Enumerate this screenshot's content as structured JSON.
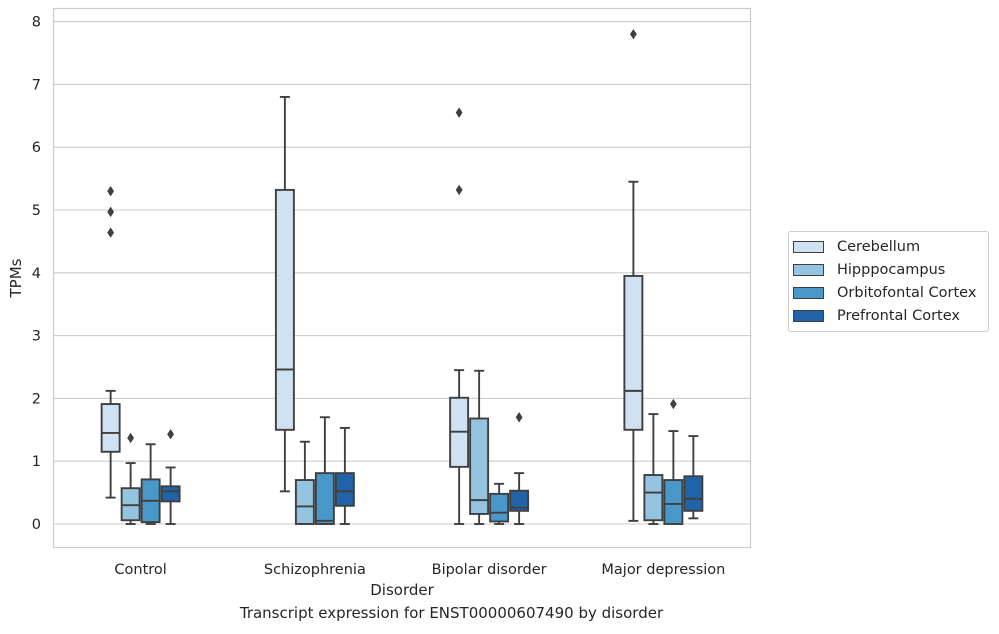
{
  "chart_data": {
    "type": "box",
    "title": "",
    "caption": "Transcript expression for ENST00000607490 by disorder",
    "xlabel": "Disorder",
    "ylabel": "TPMs",
    "ylim": [
      -0.38,
      8.2
    ],
    "yticks": [
      "0",
      "1",
      "2",
      "3",
      "4",
      "5",
      "6",
      "7",
      "8"
    ],
    "ytick_values": [
      0,
      1,
      2,
      3,
      4,
      5,
      6,
      7,
      8
    ],
    "grid": "horizontal",
    "legend_position": "right",
    "categories": [
      "Control",
      "Schizophrenia",
      "Bipolar disorder",
      "Major depression"
    ],
    "series": [
      {
        "name": "Cerebellum",
        "color": "#d0e1f2",
        "boxes": [
          {
            "whislo": 0.42,
            "q1": 1.15,
            "med": 1.45,
            "q3": 1.91,
            "whishi": 2.12,
            "fliers": [
              4.64,
              4.97,
              5.3
            ]
          },
          {
            "whislo": 0.52,
            "q1": 1.5,
            "med": 2.46,
            "q3": 5.32,
            "whishi": 6.8,
            "fliers": []
          },
          {
            "whislo": 0.0,
            "q1": 0.91,
            "med": 1.47,
            "q3": 2.01,
            "whishi": 2.45,
            "fliers": [
              5.32,
              6.55
            ]
          },
          {
            "whislo": 0.05,
            "q1": 1.5,
            "med": 2.12,
            "q3": 3.95,
            "whishi": 5.45,
            "fliers": [
              7.8
            ]
          }
        ]
      },
      {
        "name": "Hipppocampus",
        "color": "#94c4df",
        "boxes": [
          {
            "whislo": 0.0,
            "q1": 0.06,
            "med": 0.3,
            "q3": 0.57,
            "whishi": 0.97,
            "fliers": [
              1.37
            ]
          },
          {
            "whislo": 0.0,
            "q1": 0.0,
            "med": 0.28,
            "q3": 0.7,
            "whishi": 1.31,
            "fliers": []
          },
          {
            "whislo": 0.0,
            "q1": 0.16,
            "med": 0.38,
            "q3": 1.68,
            "whishi": 2.44,
            "fliers": []
          },
          {
            "whislo": 0.0,
            "q1": 0.06,
            "med": 0.5,
            "q3": 0.78,
            "whishi": 1.75,
            "fliers": []
          }
        ]
      },
      {
        "name": "Orbitofontal Cortex",
        "color": "#4a98c9",
        "boxes": [
          {
            "whislo": 0.0,
            "q1": 0.03,
            "med": 0.37,
            "q3": 0.71,
            "whishi": 1.27,
            "fliers": []
          },
          {
            "whislo": 0.0,
            "q1": 0.0,
            "med": 0.05,
            "q3": 0.81,
            "whishi": 1.7,
            "fliers": []
          },
          {
            "whislo": 0.0,
            "q1": 0.04,
            "med": 0.18,
            "q3": 0.48,
            "whishi": 0.64,
            "fliers": []
          },
          {
            "whislo": 0.0,
            "q1": 0.0,
            "med": 0.32,
            "q3": 0.7,
            "whishi": 1.48,
            "fliers": [
              1.91
            ]
          }
        ]
      },
      {
        "name": "Prefrontal Cortex",
        "color": "#2163a8",
        "boxes": [
          {
            "whislo": 0.0,
            "q1": 0.36,
            "med": 0.52,
            "q3": 0.6,
            "whishi": 0.9,
            "fliers": [
              1.43
            ]
          },
          {
            "whislo": 0.0,
            "q1": 0.29,
            "med": 0.52,
            "q3": 0.81,
            "whishi": 1.53,
            "fliers": []
          },
          {
            "whislo": 0.0,
            "q1": 0.21,
            "med": 0.26,
            "q3": 0.53,
            "whishi": 0.81,
            "fliers": [
              1.7
            ]
          },
          {
            "whislo": 0.09,
            "q1": 0.21,
            "med": 0.4,
            "q3": 0.76,
            "whishi": 1.4,
            "fliers": []
          }
        ]
      }
    ]
  }
}
